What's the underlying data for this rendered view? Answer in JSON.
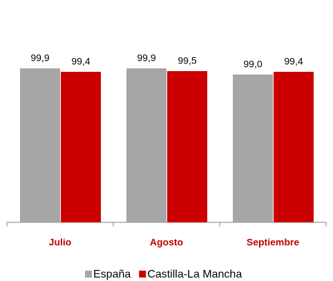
{
  "chart_data": {
    "type": "bar",
    "categories": [
      "Julio",
      "Agosto",
      "Septiembre"
    ],
    "series": [
      {
        "name": "España",
        "color": "#a6a6a6",
        "values": [
          99.9,
          99.9,
          99.0
        ],
        "value_labels": [
          "99,9",
          "99,9",
          "99,0"
        ]
      },
      {
        "name": "Castilla-La Mancha",
        "color": "#cc0000",
        "values": [
          99.4,
          99.5,
          99.4
        ],
        "value_labels": [
          "99,4",
          "99,5",
          "99,4"
        ]
      }
    ],
    "ylim": [
      77.6,
      102
    ],
    "legend": "bottom",
    "category_color": "#c00000"
  }
}
